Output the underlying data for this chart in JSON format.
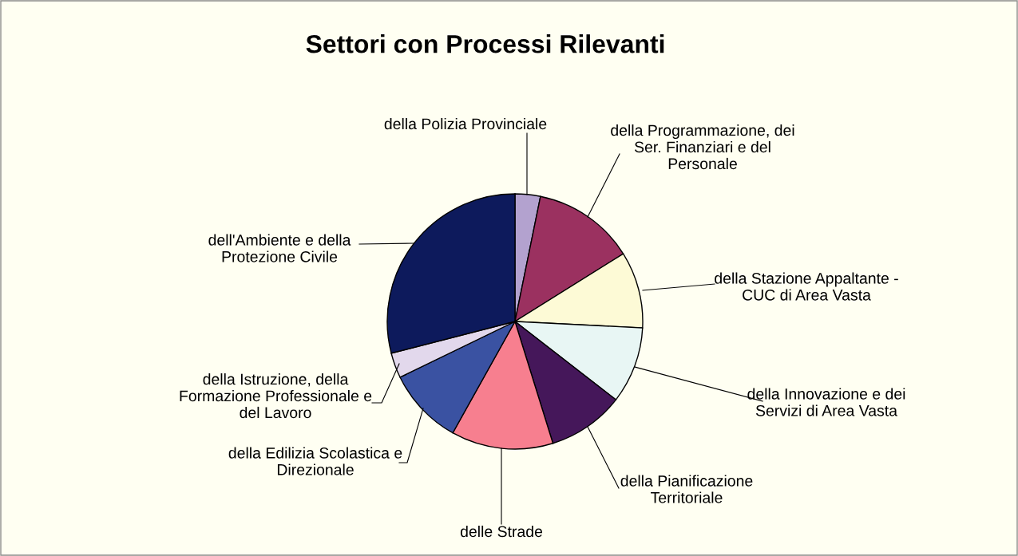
{
  "chart_data": {
    "type": "pie",
    "title": "Settori con Processi Rilevanti",
    "categories": [
      "della Polizia Provinciale",
      "della Programmazione, dei\nSer. Finanziari e del\nPersonale",
      "della Stazione Appaltante -\nCUC di Area Vasta",
      "della Innovazione e dei\nServizi di Area Vasta",
      "della Pianificazione\nTerritoriale",
      "delle Strade",
      "della Edilizia Scolastica e\nDirezionale",
      "della Istruzione, della\nFormazione Professionale e\ndel Lavoro",
      "dell'Ambiente e della\nProtezione Civile"
    ],
    "values": [
      3.2,
      12.9,
      9.7,
      9.7,
      9.7,
      12.9,
      9.7,
      3.2,
      29.0
    ],
    "colors": [
      "#b3a2cf",
      "#9b3160",
      "#fdfad6",
      "#e8f6f4",
      "#45175a",
      "#f77f8f",
      "#3a52a2",
      "#e2d8ec",
      "#0d1a5c"
    ]
  }
}
